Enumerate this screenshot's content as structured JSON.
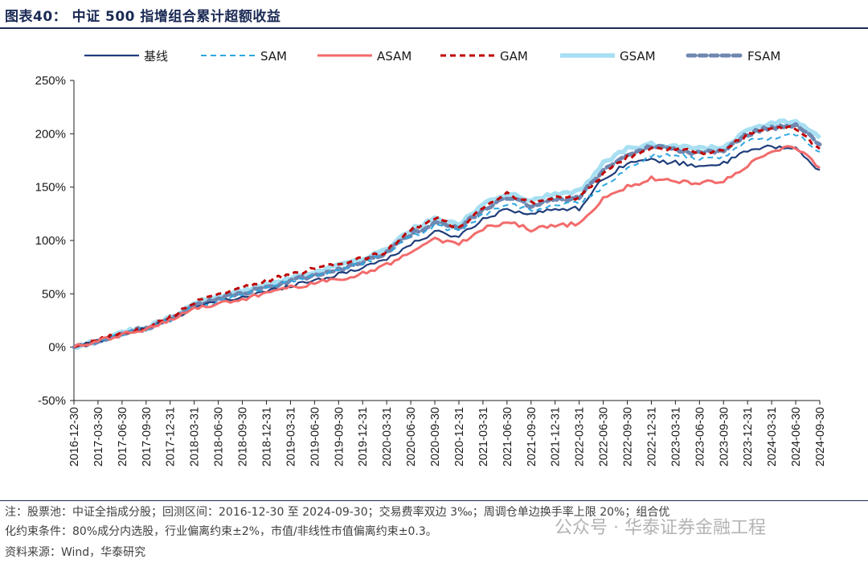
{
  "page": {
    "title": "图表40： 中证 500 指增组合累计超额收益",
    "note_line1": "注：股票池：中证全指成分股；回测区间：2016-12-30 至 2024-09-30；交易费率双边 3‰；周调仓单边换手率上限 20%；组合优",
    "note_line2": "化约束条件：80%成分内选股，行业偏离约束±2%，市值/非线性市值偏离约束±0.3。",
    "note_line3": "资料来源：Wind，华泰研究",
    "watermark": "公众号 · 华泰证券金融工程"
  },
  "chart_data": {
    "type": "line",
    "title": "",
    "xlabel": "",
    "ylabel": "",
    "ylim": [
      -50,
      250
    ],
    "yticks": [
      "-50%",
      "0%",
      "50%",
      "100%",
      "150%",
      "200%",
      "250%"
    ],
    "ytick_values": [
      -50,
      0,
      50,
      100,
      150,
      200,
      250
    ],
    "legend_position": "top",
    "grid": false,
    "x": [
      "2016-12-30",
      "2017-03-30",
      "2017-06-30",
      "2017-09-30",
      "2017-12-31",
      "2018-03-31",
      "2018-06-30",
      "2018-09-30",
      "2018-12-31",
      "2019-03-31",
      "2019-06-30",
      "2019-09-30",
      "2019-12-31",
      "2020-03-31",
      "2020-06-30",
      "2020-09-30",
      "2020-12-31",
      "2021-03-31",
      "2021-06-30",
      "2021-09-30",
      "2021-12-31",
      "2022-03-31",
      "2022-06-30",
      "2022-09-30",
      "2022-12-31",
      "2023-03-31",
      "2023-06-30",
      "2023-09-30",
      "2023-12-31",
      "2024-03-31",
      "2024-06-30",
      "2024-09-30"
    ],
    "series": [
      {
        "name": "基线",
        "color": "#1f3d7a",
        "style": "solid",
        "width": 2.2,
        "values": [
          0,
          6,
          13,
          17,
          26,
          37,
          42,
          47,
          52,
          58,
          63,
          68,
          75,
          83,
          96,
          108,
          104,
          120,
          130,
          124,
          130,
          130,
          158,
          173,
          175,
          173,
          170,
          172,
          184,
          188,
          186,
          166
        ]
      },
      {
        "name": "SAM",
        "color": "#2ea6e0",
        "style": "dash",
        "width": 2,
        "values": [
          0,
          5,
          12,
          17,
          26,
          38,
          43,
          49,
          55,
          61,
          66,
          72,
          79,
          88,
          103,
          114,
          108,
          124,
          135,
          128,
          134,
          136,
          150,
          168,
          180,
          180,
          176,
          178,
          194,
          196,
          200,
          183
        ]
      },
      {
        "name": "ASAM",
        "color": "#f26b6b",
        "style": "solid",
        "width": 3,
        "values": [
          0,
          5,
          12,
          17,
          26,
          36,
          40,
          45,
          50,
          56,
          60,
          64,
          69,
          77,
          90,
          102,
          96,
          111,
          118,
          110,
          115,
          115,
          140,
          150,
          158,
          156,
          154,
          156,
          170,
          184,
          188,
          168
        ]
      },
      {
        "name": "GAM",
        "color": "#c00000",
        "style": "dash",
        "width": 3,
        "values": [
          0,
          6,
          14,
          18,
          28,
          42,
          50,
          56,
          62,
          68,
          73,
          78,
          83,
          90,
          110,
          122,
          112,
          130,
          144,
          135,
          140,
          140,
          162,
          178,
          186,
          186,
          182,
          184,
          200,
          204,
          206,
          186
        ]
      },
      {
        "name": "GSAM",
        "color": "#a8dff2",
        "style": "solid",
        "width": 5.5,
        "values": [
          0,
          6,
          14,
          18,
          27,
          41,
          47,
          53,
          58,
          64,
          70,
          76,
          82,
          92,
          110,
          120,
          116,
          134,
          144,
          138,
          144,
          146,
          172,
          186,
          190,
          188,
          186,
          188,
          204,
          210,
          212,
          196
        ]
      },
      {
        "name": "FSAM",
        "color": "#6f88b0",
        "style": "dot",
        "width": 5,
        "values": [
          0,
          6,
          13,
          18,
          27,
          40,
          46,
          51,
          56,
          62,
          67,
          73,
          80,
          89,
          106,
          117,
          111,
          129,
          140,
          133,
          138,
          140,
          166,
          180,
          188,
          185,
          182,
          184,
          200,
          206,
          208,
          190
        ]
      }
    ]
  }
}
